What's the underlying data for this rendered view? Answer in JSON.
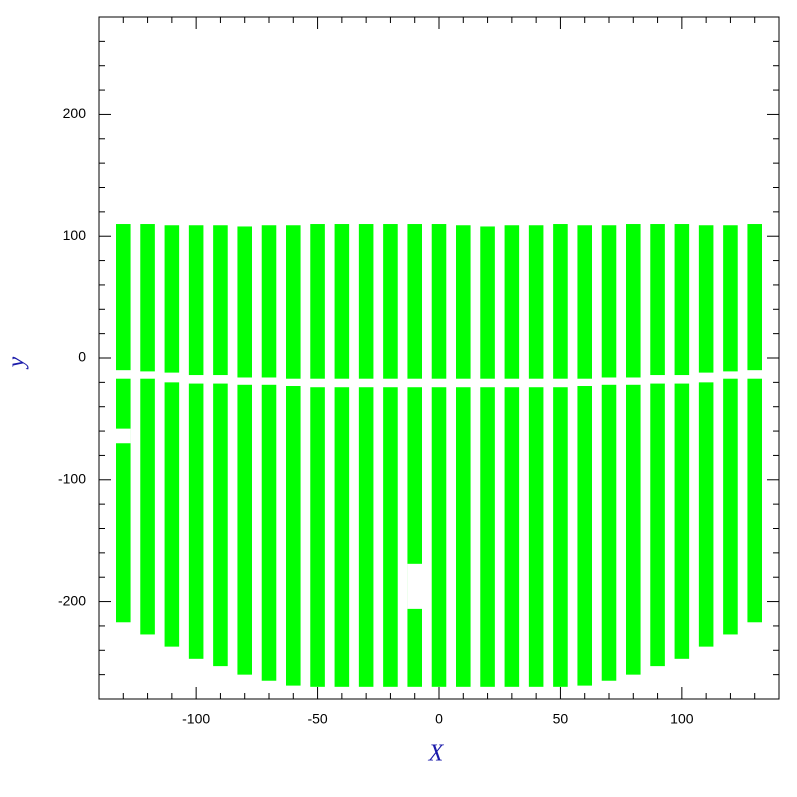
{
  "chart_data": {
    "type": "range-strips",
    "x_label": "X",
    "y_label": "y",
    "xlim": [
      -140,
      140
    ],
    "ylim": [
      -280,
      280
    ],
    "xticks": [
      -100,
      -50,
      0,
      50,
      100
    ],
    "yticks": [
      -200,
      -100,
      0,
      100,
      200
    ],
    "xminorticks": [
      -130,
      -120,
      -110,
      -90,
      -80,
      -70,
      -60,
      -40,
      -30,
      -20,
      -10,
      10,
      20,
      30,
      40,
      60,
      70,
      80,
      90,
      110,
      120,
      130
    ],
    "yminorticks": [
      -260,
      -240,
      -220,
      -180,
      -160,
      -140,
      -120,
      -80,
      -60,
      -40,
      -20,
      20,
      40,
      60,
      80,
      120,
      140,
      160,
      180,
      220,
      240,
      260
    ],
    "strip_width": 6,
    "color": "#00ff00",
    "x": [
      -130,
      -120,
      -110,
      -100,
      -90,
      -80,
      -70,
      -60,
      -50,
      -40,
      -30,
      -20,
      -10,
      0,
      10,
      20,
      30,
      40,
      50,
      60,
      70,
      80,
      90,
      100,
      110,
      120,
      130
    ],
    "upper_high": [
      110,
      110,
      109,
      109,
      109,
      108,
      109,
      109,
      110,
      110,
      110,
      110,
      110,
      110,
      109,
      108,
      109,
      109,
      110,
      109,
      109,
      110,
      110,
      110,
      109,
      109,
      110
    ],
    "upper_low": [
      -10,
      -11,
      -12,
      -14,
      -14,
      -16,
      -16,
      -17,
      -17,
      -17,
      -17,
      -17,
      -17,
      -17,
      -17,
      -17,
      -17,
      -17,
      -17,
      -17,
      -16,
      -16,
      -14,
      -14,
      -12,
      -11,
      -10
    ],
    "lower_high": [
      -17,
      -17,
      -20,
      -21,
      -21,
      -22,
      -22,
      -23,
      -24,
      -24,
      -24,
      -24,
      -24,
      -24,
      -24,
      -24,
      -24,
      -24,
      -24,
      -23,
      -22,
      -22,
      -21,
      -21,
      -20,
      -17,
      -17
    ],
    "lower_low": [
      -217,
      -227,
      -237,
      -247,
      -253,
      -260,
      -265,
      -269,
      -270,
      -270,
      -270,
      -270,
      -270,
      -270,
      -270,
      -270,
      -270,
      -270,
      -270,
      -269,
      -265,
      -260,
      -253,
      -247,
      -237,
      -227,
      -217
    ],
    "gaps": [
      {
        "x": -130,
        "low": -70,
        "high": -58
      },
      {
        "x": -10,
        "low": -206,
        "high": -169
      }
    ]
  }
}
